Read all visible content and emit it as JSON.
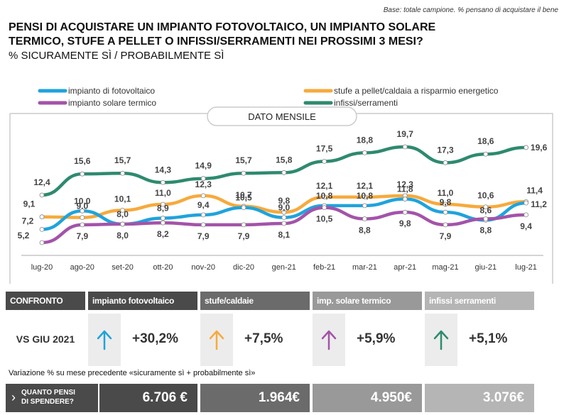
{
  "base_note": "Base: totale campione. % pensano di acquistare il bene",
  "title_line1": "PENSI DI ACQUISTARE UN IMPIANTO FOTOVOLTAICO, UN IMPIANTO SOLARE",
  "title_line2": "TERMICO,  STUFE A PELLET O INFISSI/SERRAMENTI NEI PROSSIMI 3 MESI?",
  "subtitle": "% SICURAMENTE SÌ / PROBABILMENTE SÌ",
  "chart_data": {
    "type": "line",
    "banner": "DATO MENSILE",
    "categories": [
      "lug-20",
      "ago-20",
      "set-20",
      "ott-20",
      "nov-20",
      "dic-20",
      "gen-21",
      "feb-21",
      "mar-21",
      "apr-21",
      "mag-21",
      "giu-21",
      "lug-21"
    ],
    "y_range": [
      4,
      21
    ],
    "grid": false,
    "legend_position": "top",
    "series": [
      {
        "name": "impianto di fotovoltaico",
        "color": "#1fa3dc",
        "values": [
          7.2,
          10.0,
          8.0,
          8.9,
          9.4,
          10.5,
          9.0,
          10.8,
          10.8,
          11.8,
          9.8,
          8.6,
          11.2
        ],
        "labels": [
          "7,2",
          "10,0",
          "8,0",
          "8,9",
          "9,4",
          "10,5",
          "9,0",
          "10,8",
          "10,8",
          "11,8",
          "9,8",
          "8,6",
          "11,2"
        ]
      },
      {
        "name": "stufe a pellet/caldaia a risparmio energetico",
        "color": "#f6aa3c",
        "values": [
          9.1,
          9.0,
          10.1,
          11.0,
          12.3,
          10.7,
          9.8,
          12.1,
          12.1,
          12.3,
          11.0,
          10.6,
          11.4
        ],
        "labels": [
          "9,1",
          "9,0",
          "10,1",
          "11,0",
          "12,3",
          "10,7",
          "9,8",
          "12,1",
          "12,1",
          "12,3",
          "11,0",
          "10,6",
          "11,4"
        ]
      },
      {
        "name": "impianto solare termico",
        "color": "#a353a9",
        "values": [
          5.2,
          7.9,
          8.0,
          8.2,
          7.9,
          7.9,
          8.1,
          10.5,
          8.8,
          9.8,
          7.9,
          8.8,
          9.4
        ],
        "labels": [
          "5,2",
          "7,9",
          "8,0",
          "8,2",
          "7,9",
          "7,9",
          "8,1",
          "10,5",
          "8,8",
          "9,8",
          "7,9",
          "8,8",
          "9,4"
        ]
      },
      {
        "name": "infissi/serramenti",
        "color": "#2e8a6f",
        "values": [
          12.4,
          15.6,
          15.7,
          14.3,
          14.9,
          15.7,
          15.8,
          17.5,
          18.8,
          19.7,
          17.3,
          18.6,
          19.6
        ],
        "labels": [
          "12,4",
          "15,6",
          "15,7",
          "14,3",
          "14,9",
          "15,7",
          "15,8",
          "17,5",
          "18,8",
          "19,7",
          "17,3",
          "18,6",
          "19,6"
        ]
      }
    ]
  },
  "comparison": {
    "header_label": "CONFRONTO",
    "row_label": "VS GIU 2021",
    "columns": [
      {
        "title": "impianto fotovoltaico",
        "header_color": "#4a4a4a",
        "arrow_color": "#1fa3dc",
        "arrow_icon": "up-arrow-icon",
        "change": "+30,2%"
      },
      {
        "title": "stufe/caldaie",
        "header_color": "#6b6b6b",
        "arrow_color": "#f6aa3c",
        "arrow_icon": "up-arrow-icon",
        "change": "+7,5%"
      },
      {
        "title": "imp. solare termico",
        "header_color": "#999999",
        "arrow_color": "#a353a9",
        "arrow_icon": "up-arrow-icon",
        "change": "+5,9%"
      },
      {
        "title": "infissi serramenti",
        "header_color": "#b5b5b5",
        "arrow_color": "#2e8a6f",
        "arrow_icon": "up-arrow-icon",
        "change": "+5,1%"
      }
    ],
    "note": "Variazione % su mese precedente «sicuramente sì + probabilmente sì»"
  },
  "spending": {
    "question_line1": "QUANTO PENSI",
    "question_line2": "DI SPENDERE?",
    "chevron_icon": "chevron-right-icon",
    "values": [
      {
        "amount": "6.706 €",
        "color": "#4a4a4a"
      },
      {
        "amount": "1.964€",
        "color": "#6b6b6b"
      },
      {
        "amount": "4.950€",
        "color": "#999999"
      },
      {
        "amount": "3.076€",
        "color": "#b5b5b5"
      }
    ]
  }
}
